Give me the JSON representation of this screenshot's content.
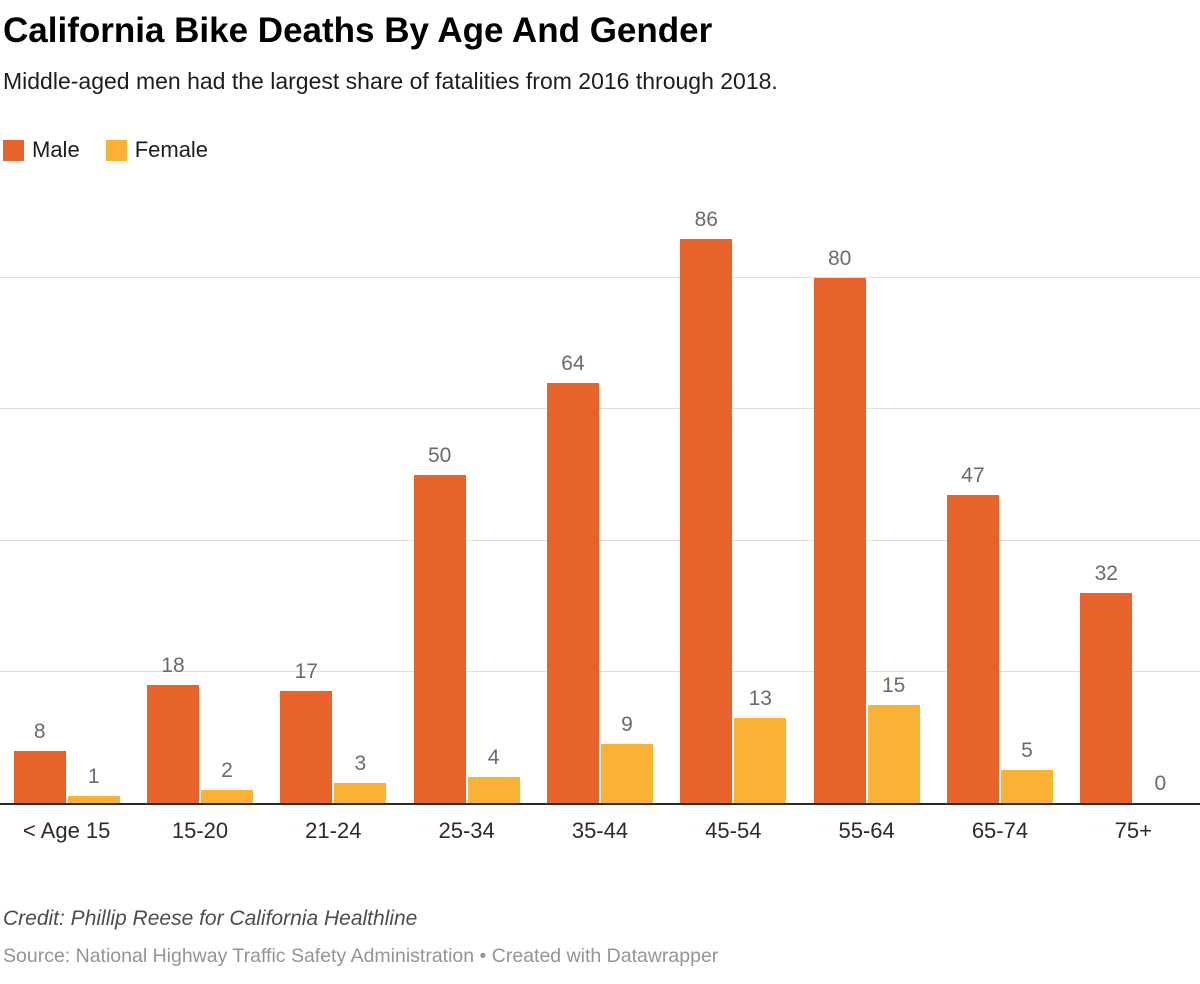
{
  "header": {
    "title": "California Bike Deaths By Age And Gender",
    "subtitle": "Middle-aged men had the largest share of fatalities from 2016 through 2018."
  },
  "legend": [
    {
      "label": "Male",
      "color": "#E8622C"
    },
    {
      "label": "Female",
      "color": "#F9B234"
    }
  ],
  "chart_data": {
    "type": "bar",
    "title": "California Bike Deaths By Age And Gender",
    "subtitle": "Middle-aged men had the largest share of fatalities from 2016 through 2018.",
    "categories": [
      "< Age 15",
      "15-20",
      "21-24",
      "25-34",
      "35-44",
      "45-54",
      "55-64",
      "65-74",
      "75+"
    ],
    "series": [
      {
        "name": "Male",
        "color": "#E8622C",
        "values": [
          8,
          18,
          17,
          50,
          64,
          86,
          80,
          47,
          32
        ]
      },
      {
        "name": "Female",
        "color": "#F9B234",
        "values": [
          1,
          2,
          3,
          4,
          9,
          13,
          15,
          5,
          0
        ]
      }
    ],
    "xlabel": "",
    "ylabel": "",
    "ylim": [
      0,
      94
    ],
    "gridlines": [
      20,
      40,
      60,
      80
    ],
    "grid": true,
    "legend_position": "top-left",
    "value_labels": true
  },
  "footer": {
    "credit": "Credit: Phillip Reese for California Healthline",
    "source": "Source: National Highway Traffic Safety Administration • Created with Datawrapper"
  }
}
